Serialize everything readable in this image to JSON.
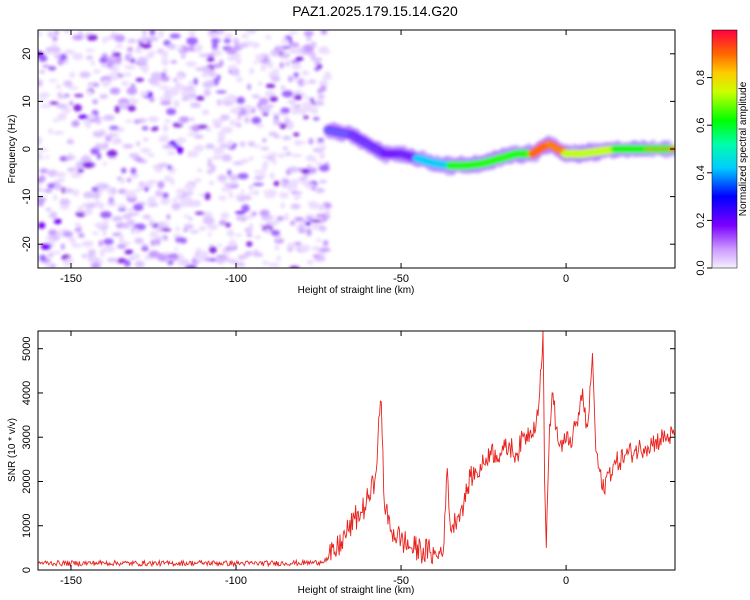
{
  "title": "PAZ1.2025.179.15.14.G20",
  "chart_data": [
    {
      "type": "heatmap",
      "xlabel": "Height of straight line (km)",
      "ylabel": "Frequency (Hz)",
      "xlim": [
        -160,
        33
      ],
      "ylim": [
        -25,
        25
      ],
      "xticks": [
        -150,
        -100,
        -50,
        0
      ],
      "yticks": [
        -20,
        -10,
        0,
        10,
        20
      ],
      "colorbar": {
        "label": "Normalized spectral amplitude",
        "range": [
          0,
          1
        ],
        "ticks": [
          "0.0",
          "0.2",
          "0.4",
          "0.6",
          "0.8"
        ]
      },
      "noise_region": [
        -160,
        -72
      ],
      "signal_track": [
        {
          "x": -72,
          "y": 4
        },
        {
          "x": -65,
          "y": 3
        },
        {
          "x": -60,
          "y": 1
        },
        {
          "x": -55,
          "y": -1
        },
        {
          "x": -50,
          "y": -1
        },
        {
          "x": -45,
          "y": -2
        },
        {
          "x": -40,
          "y": -3
        },
        {
          "x": -35,
          "y": -3.5
        },
        {
          "x": -30,
          "y": -3.5
        },
        {
          "x": -25,
          "y": -3
        },
        {
          "x": -20,
          "y": -2
        },
        {
          "x": -15,
          "y": -1
        },
        {
          "x": -10,
          "y": -1
        },
        {
          "x": -7,
          "y": 0.5
        },
        {
          "x": -5,
          "y": 1
        },
        {
          "x": 0,
          "y": -1
        },
        {
          "x": 5,
          "y": -1
        },
        {
          "x": 10,
          "y": -0.5
        },
        {
          "x": 15,
          "y": 0
        },
        {
          "x": 20,
          "y": 0
        },
        {
          "x": 25,
          "y": 0
        },
        {
          "x": 33,
          "y": 0
        }
      ]
    },
    {
      "type": "line",
      "xlabel": "Height of straight line (km)",
      "ylabel": "SNR (10 * v/v)",
      "xlim": [
        -160,
        33
      ],
      "ylim": [
        0,
        5400
      ],
      "xticks": [
        -150,
        -100,
        -50,
        0
      ],
      "yticks": [
        0,
        1000,
        2000,
        3000,
        4000,
        5000
      ],
      "series": [
        {
          "color": "#e8231e",
          "points": [
            {
              "x": -160,
              "y": 160
            },
            {
              "x": -150,
              "y": 150
            },
            {
              "x": -140,
              "y": 160
            },
            {
              "x": -130,
              "y": 150
            },
            {
              "x": -120,
              "y": 150
            },
            {
              "x": -110,
              "y": 160
            },
            {
              "x": -100,
              "y": 150
            },
            {
              "x": -90,
              "y": 150
            },
            {
              "x": -80,
              "y": 160
            },
            {
              "x": -75,
              "y": 170
            },
            {
              "x": -72,
              "y": 260
            },
            {
              "x": -70,
              "y": 400
            },
            {
              "x": -68,
              "y": 650
            },
            {
              "x": -66,
              "y": 900
            },
            {
              "x": -64,
              "y": 1150
            },
            {
              "x": -62,
              "y": 1300
            },
            {
              "x": -60,
              "y": 1600
            },
            {
              "x": -58,
              "y": 2000
            },
            {
              "x": -57,
              "y": 3000
            },
            {
              "x": -56,
              "y": 3800
            },
            {
              "x": -55,
              "y": 1400
            },
            {
              "x": -53,
              "y": 900
            },
            {
              "x": -50,
              "y": 700
            },
            {
              "x": -47,
              "y": 500
            },
            {
              "x": -44,
              "y": 450
            },
            {
              "x": -41,
              "y": 400
            },
            {
              "x": -39,
              "y": 300
            },
            {
              "x": -37,
              "y": 600
            },
            {
              "x": -36,
              "y": 2300
            },
            {
              "x": -35,
              "y": 900
            },
            {
              "x": -33,
              "y": 1200
            },
            {
              "x": -31,
              "y": 1500
            },
            {
              "x": -29,
              "y": 2100
            },
            {
              "x": -27,
              "y": 2200
            },
            {
              "x": -25,
              "y": 2400
            },
            {
              "x": -23,
              "y": 2700
            },
            {
              "x": -21,
              "y": 2600
            },
            {
              "x": -19,
              "y": 2700
            },
            {
              "x": -17,
              "y": 2800
            },
            {
              "x": -15,
              "y": 2600
            },
            {
              "x": -13,
              "y": 3000
            },
            {
              "x": -11,
              "y": 3100
            },
            {
              "x": -9,
              "y": 3400
            },
            {
              "x": -8,
              "y": 4000
            },
            {
              "x": -7,
              "y": 5400
            },
            {
              "x": -6.5,
              "y": 2000
            },
            {
              "x": -6,
              "y": 500
            },
            {
              "x": -5,
              "y": 3300
            },
            {
              "x": -4,
              "y": 4000
            },
            {
              "x": -3,
              "y": 3200
            },
            {
              "x": -2,
              "y": 2800
            },
            {
              "x": 0,
              "y": 2900
            },
            {
              "x": 2,
              "y": 3000
            },
            {
              "x": 4,
              "y": 3500
            },
            {
              "x": 5,
              "y": 4100
            },
            {
              "x": 6,
              "y": 3200
            },
            {
              "x": 7,
              "y": 3600
            },
            {
              "x": 8,
              "y": 4900
            },
            {
              "x": 9,
              "y": 2700
            },
            {
              "x": 10,
              "y": 2300
            },
            {
              "x": 11,
              "y": 1800
            },
            {
              "x": 13,
              "y": 2200
            },
            {
              "x": 15,
              "y": 2400
            },
            {
              "x": 18,
              "y": 2600
            },
            {
              "x": 21,
              "y": 2700
            },
            {
              "x": 24,
              "y": 2800
            },
            {
              "x": 27,
              "y": 2900
            },
            {
              "x": 30,
              "y": 3000
            },
            {
              "x": 33,
              "y": 3050
            }
          ]
        }
      ]
    }
  ]
}
